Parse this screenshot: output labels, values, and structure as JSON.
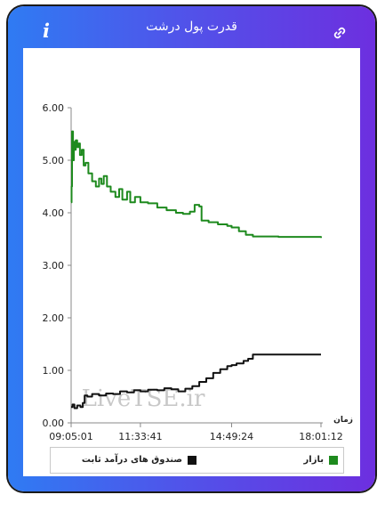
{
  "header": {
    "title": "قدرت پول درشت",
    "info_icon": "i",
    "link_icon": "link-icon"
  },
  "watermark": "LiveTSE.ir",
  "chart_data": {
    "type": "line",
    "xlabel": "زمان",
    "ylabel": "",
    "ylim": [
      0,
      6
    ],
    "yticks": [
      "0.00",
      "1.00",
      "2.00",
      "3.00",
      "4.00",
      "5.00",
      "6.00"
    ],
    "xlim": [
      "09:05:01",
      "18:01:12"
    ],
    "xticks": [
      "09:05:01",
      "11:33:41",
      "14:49:24",
      "18:01:12"
    ],
    "grid": false,
    "legend": "bottom",
    "series": [
      {
        "name": "بازار",
        "color": "#1e8a1e",
        "points": [
          [
            "09:05:01",
            4.2
          ],
          [
            "09:06:00",
            4.5
          ],
          [
            "09:07:00",
            5.55
          ],
          [
            "09:09:00",
            5.0
          ],
          [
            "09:11:00",
            5.35
          ],
          [
            "09:13:00",
            5.2
          ],
          [
            "09:15:00",
            5.38
          ],
          [
            "09:18:00",
            5.25
          ],
          [
            "09:21:00",
            5.32
          ],
          [
            "09:24:00",
            5.1
          ],
          [
            "09:28:00",
            5.2
          ],
          [
            "09:32:00",
            4.9
          ],
          [
            "09:36:00",
            4.95
          ],
          [
            "09:42:00",
            4.75
          ],
          [
            "09:50:00",
            4.6
          ],
          [
            "09:58:00",
            4.5
          ],
          [
            "10:05:00",
            4.65
          ],
          [
            "10:10:00",
            4.55
          ],
          [
            "10:15:00",
            4.7
          ],
          [
            "10:22:00",
            4.5
          ],
          [
            "10:30:00",
            4.4
          ],
          [
            "10:40:00",
            4.3
          ],
          [
            "10:48:00",
            4.45
          ],
          [
            "10:55:00",
            4.25
          ],
          [
            "11:05:00",
            4.4
          ],
          [
            "11:12:00",
            4.2
          ],
          [
            "11:22:00",
            4.3
          ],
          [
            "11:33:41",
            4.2
          ],
          [
            "11:50:00",
            4.18
          ],
          [
            "12:10:00",
            4.1
          ],
          [
            "12:30:00",
            4.05
          ],
          [
            "12:50:00",
            4.0
          ],
          [
            "13:05:00",
            3.98
          ],
          [
            "13:20:00",
            4.02
          ],
          [
            "13:30:00",
            4.15
          ],
          [
            "13:40:00",
            4.12
          ],
          [
            "13:45:00",
            3.85
          ],
          [
            "14:00:00",
            3.82
          ],
          [
            "14:20:00",
            3.78
          ],
          [
            "14:40:00",
            3.75
          ],
          [
            "14:49:24",
            3.72
          ],
          [
            "15:05:00",
            3.65
          ],
          [
            "15:20:00",
            3.58
          ],
          [
            "15:35:00",
            3.55
          ],
          [
            "16:00:00",
            3.55
          ],
          [
            "16:30:00",
            3.54
          ],
          [
            "17:00:00",
            3.54
          ],
          [
            "17:30:00",
            3.54
          ],
          [
            "18:01:12",
            3.52
          ]
        ]
      },
      {
        "name": "صندوق های درآمد ثابت",
        "color": "#111111",
        "points": [
          [
            "09:05:01",
            0.3
          ],
          [
            "09:08:00",
            0.35
          ],
          [
            "09:12:00",
            0.28
          ],
          [
            "09:18:00",
            0.33
          ],
          [
            "09:25:00",
            0.3
          ],
          [
            "09:30:00",
            0.38
          ],
          [
            "09:34:00",
            0.52
          ],
          [
            "09:40:00",
            0.5
          ],
          [
            "09:50:00",
            0.55
          ],
          [
            "10:05:00",
            0.52
          ],
          [
            "10:20:00",
            0.56
          ],
          [
            "10:35:00",
            0.55
          ],
          [
            "10:50:00",
            0.6
          ],
          [
            "11:05:00",
            0.58
          ],
          [
            "11:20:00",
            0.62
          ],
          [
            "11:33:41",
            0.6
          ],
          [
            "11:50:00",
            0.63
          ],
          [
            "12:10:00",
            0.62
          ],
          [
            "12:25:00",
            0.66
          ],
          [
            "12:40:00",
            0.64
          ],
          [
            "12:55:00",
            0.6
          ],
          [
            "13:10:00",
            0.65
          ],
          [
            "13:25:00",
            0.7
          ],
          [
            "13:40:00",
            0.78
          ],
          [
            "13:55:00",
            0.85
          ],
          [
            "14:10:00",
            0.95
          ],
          [
            "14:25:00",
            1.02
          ],
          [
            "14:40:00",
            1.08
          ],
          [
            "14:49:24",
            1.1
          ],
          [
            "15:00:00",
            1.13
          ],
          [
            "15:15:00",
            1.18
          ],
          [
            "15:25:00",
            1.22
          ],
          [
            "15:35:00",
            1.3
          ],
          [
            "16:00:00",
            1.3
          ],
          [
            "16:40:00",
            1.3
          ],
          [
            "17:20:00",
            1.3
          ],
          [
            "18:01:12",
            1.3
          ]
        ]
      }
    ]
  }
}
